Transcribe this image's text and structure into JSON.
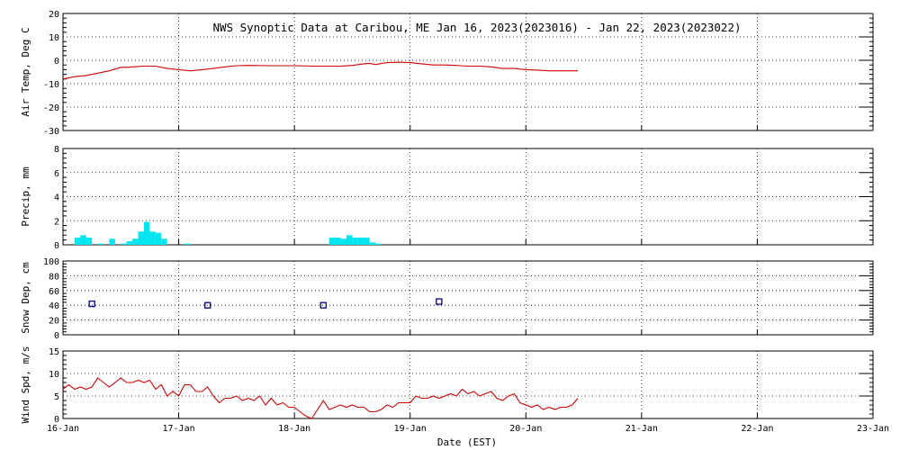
{
  "title": "NWS Synoptic Data at Caribou, ME   Jan 16, 2023(2023016) - Jan 22, 2023(2023022)",
  "xlabel": "Date (EST)",
  "x_tick_labels": [
    "16-Jan",
    "17-Jan",
    "18-Jan",
    "19-Jan",
    "20-Jan",
    "21-Jan",
    "22-Jan",
    "23-Jan"
  ],
  "colors": {
    "temp": "#cc0000",
    "precip": "#00e5ee",
    "snow": "#000080",
    "wind": "#cc0000",
    "grid": "#000000"
  },
  "chart_data": [
    {
      "type": "line",
      "ylabel": "Air Temp, Deg C",
      "ylim": [
        -30,
        20
      ],
      "y_ticks": [
        -30,
        -20,
        -10,
        0,
        10,
        20
      ],
      "xlim_days": [
        0,
        7
      ],
      "grid": true,
      "series": [
        {
          "x": [
            0,
            0.1,
            0.2,
            0.3,
            0.4,
            0.5,
            0.55,
            0.6,
            0.7,
            0.8,
            0.9,
            1.0,
            1.1,
            1.2,
            1.3,
            1.4,
            1.5,
            1.6,
            1.8,
            2.0,
            2.2,
            2.4,
            2.5,
            2.6,
            2.65,
            2.7,
            2.8,
            2.9,
            3.0,
            3.1,
            3.2,
            3.3,
            3.4,
            3.5,
            3.6,
            3.7,
            3.8,
            3.9,
            4.0,
            4.1,
            4.2,
            4.3,
            4.4,
            4.45
          ],
          "y": [
            -8,
            -7,
            -6.5,
            -5.5,
            -4.5,
            -3,
            -3,
            -2.8,
            -2.5,
            -2.5,
            -3.5,
            -4,
            -4.5,
            -4,
            -3.5,
            -2.8,
            -2.3,
            -2.2,
            -2.3,
            -2.3,
            -2.5,
            -2.5,
            -2.2,
            -1.5,
            -1.3,
            -1.8,
            -1,
            -0.8,
            -1,
            -1.5,
            -2,
            -2,
            -2.2,
            -2.5,
            -2.5,
            -2.8,
            -3.5,
            -3.5,
            -4,
            -4.2,
            -4.5,
            -4.5,
            -4.5,
            -4.5
          ]
        }
      ]
    },
    {
      "type": "bar",
      "ylabel": "Precip, mm",
      "ylim": [
        0,
        8
      ],
      "y_ticks": [
        0,
        2,
        4,
        6,
        8
      ],
      "xlim_days": [
        0,
        7
      ],
      "grid": true,
      "series": [
        {
          "x_start": [
            0.1,
            0.15,
            0.2,
            0.3,
            0.4,
            0.5,
            0.55,
            0.6,
            0.65,
            0.7,
            0.75,
            0.8,
            0.85,
            1.05,
            2.3,
            2.35,
            2.4,
            2.45,
            2.5,
            2.55,
            2.6,
            2.65,
            2.7
          ],
          "values": [
            0.6,
            0.8,
            0.6,
            0.1,
            0.5,
            0.1,
            0.3,
            0.5,
            1.1,
            1.9,
            1.1,
            1.0,
            0.5,
            0.1,
            0.6,
            0.6,
            0.5,
            0.8,
            0.6,
            0.6,
            0.6,
            0.2,
            0.1
          ],
          "bar_width_days": 0.05
        }
      ]
    },
    {
      "type": "scatter",
      "ylabel": "Snow Dep, cm",
      "ylim": [
        0,
        100
      ],
      "y_ticks": [
        0,
        20,
        40,
        60,
        80,
        100
      ],
      "xlim_days": [
        0,
        7
      ],
      "grid": true,
      "series": [
        {
          "x": [
            0.25,
            1.25,
            2.25,
            3.25
          ],
          "y": [
            42,
            40,
            40,
            45
          ]
        }
      ]
    },
    {
      "type": "line",
      "ylabel": "Wind Spd, m/s",
      "ylim": [
        0,
        15
      ],
      "y_ticks": [
        0,
        5,
        10,
        15
      ],
      "xlim_days": [
        0,
        7
      ],
      "grid": true,
      "series": [
        {
          "x": [
            0,
            0.05,
            0.1,
            0.15,
            0.2,
            0.25,
            0.3,
            0.35,
            0.4,
            0.45,
            0.5,
            0.55,
            0.6,
            0.65,
            0.7,
            0.75,
            0.8,
            0.85,
            0.9,
            0.95,
            1.0,
            1.05,
            1.1,
            1.15,
            1.2,
            1.25,
            1.3,
            1.35,
            1.4,
            1.45,
            1.5,
            1.55,
            1.6,
            1.65,
            1.7,
            1.75,
            1.8,
            1.85,
            1.9,
            1.95,
            2.0,
            2.05,
            2.1,
            2.15,
            2.2,
            2.25,
            2.3,
            2.35,
            2.4,
            2.45,
            2.5,
            2.55,
            2.6,
            2.65,
            2.7,
            2.75,
            2.8,
            2.85,
            2.9,
            2.95,
            3.0,
            3.05,
            3.1,
            3.15,
            3.2,
            3.25,
            3.3,
            3.35,
            3.4,
            3.45,
            3.5,
            3.55,
            3.6,
            3.65,
            3.7,
            3.75,
            3.8,
            3.85,
            3.9,
            3.95,
            4.0,
            4.05,
            4.1,
            4.15,
            4.2,
            4.25,
            4.3,
            4.35,
            4.4,
            4.45
          ],
          "y": [
            6.5,
            7.5,
            6.5,
            7,
            6.5,
            7,
            9,
            8,
            7,
            8,
            9,
            8,
            8,
            8.5,
            8,
            8.5,
            6.5,
            7.5,
            5,
            6,
            5,
            7.5,
            7.5,
            6,
            6,
            7,
            5,
            3.5,
            4.5,
            4.5,
            5,
            4,
            4.5,
            4,
            5,
            3,
            4.5,
            3,
            3.5,
            2.5,
            2.5,
            1.5,
            0.5,
            0,
            2,
            4,
            2,
            2.5,
            3,
            2.5,
            3,
            2.5,
            2.5,
            1.5,
            1.5,
            2,
            3,
            2.5,
            3.5,
            3.5,
            3.5,
            5,
            4.5,
            4.5,
            5,
            4.5,
            5,
            5.5,
            5,
            6.5,
            5.5,
            6,
            5,
            5.5,
            6,
            4.5,
            4,
            5,
            5.5,
            3.5,
            3,
            2.5,
            3,
            2,
            2.5,
            2,
            2.5,
            2.5,
            3,
            4.5
          ]
        }
      ]
    }
  ]
}
